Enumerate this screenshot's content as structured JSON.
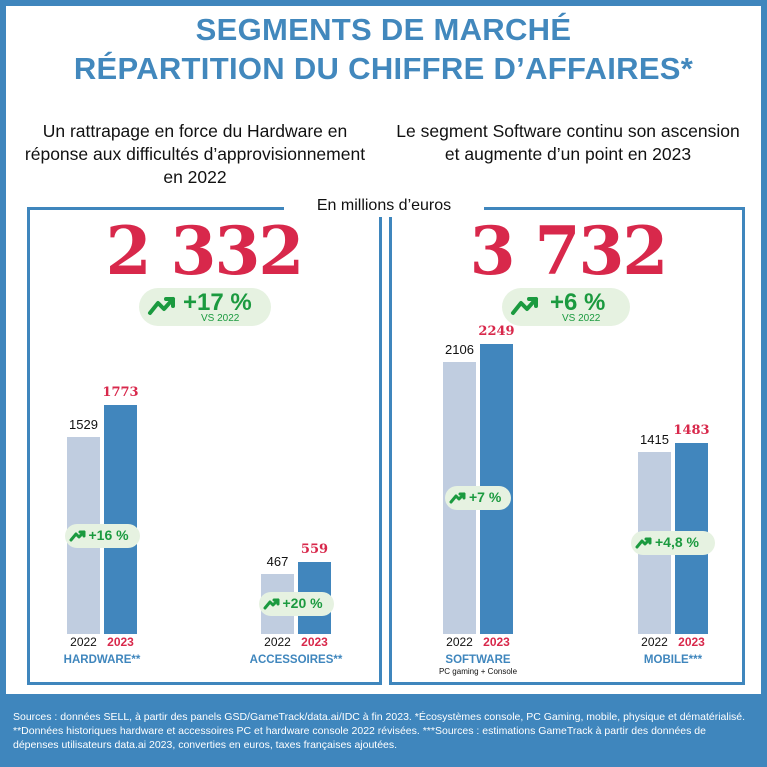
{
  "title": {
    "line1": "SEGMENTS DE MARCHÉ",
    "line2": "RÉPARTITION DU CHIFFRE D’AFFAIRES*"
  },
  "subtitles": {
    "left": "Un rattrapage en force du Hardware en réponse aux difficultés d’approvisionnement en 2022",
    "right": "Le segment Software continu son ascension et augmente d’un point en 2023"
  },
  "unit_label": "En millions d’euros",
  "footer": "Sources : données SELL, à partir des panels GSD/GameTrack/data.ai/IDC à fin 2023. *Écosystèmes console, PC Gaming, mobile, physique et dématérialisé. **Données historiques hardware et accessoires PC et hardware console 2022 révisées.  ***Sources : estimations GameTrack à partir des données de dépenses utilisateurs data.ai 2023, converties en euros, taxes françaises ajoutées.",
  "colors": {
    "accent_blue": "#3f86bd",
    "bar_2022": "#c0cde0",
    "bar_2023": "#4186bd",
    "highlight_red": "#d8284b",
    "growth_green": "#1b9a3f",
    "pill_bg": "#e6f2e1"
  },
  "icons": {
    "growth": "trend-up-arrow-icon"
  },
  "chart_data": [
    {
      "type": "bar",
      "total": "2 332",
      "total_growth": "+17 %",
      "total_growth_note": "VS 2022",
      "series": [
        {
          "name": "2022",
          "values": [
            1529,
            467
          ]
        },
        {
          "name": "2023",
          "values": [
            1773,
            559
          ]
        }
      ],
      "value_labels": {
        "2022": [
          "1529",
          "467"
        ],
        "2023": [
          "1773",
          "559"
        ]
      },
      "categories": [
        "HARDWARE**",
        "ACCESSOIRES**"
      ],
      "category_sublabels": [
        "",
        ""
      ],
      "year_labels": [
        "2022",
        "2023"
      ],
      "growth": [
        "+16 %",
        "+20 %"
      ],
      "ylim": [
        0,
        2249
      ]
    },
    {
      "type": "bar",
      "total": "3 732",
      "total_growth": "+6 %",
      "total_growth_note": "VS 2022",
      "series": [
        {
          "name": "2022",
          "values": [
            2106,
            1415
          ]
        },
        {
          "name": "2023",
          "values": [
            2249,
            1483
          ]
        }
      ],
      "value_labels": {
        "2022": [
          "2106",
          "1415"
        ],
        "2023": [
          "2249",
          "1483"
        ]
      },
      "categories": [
        "SOFTWARE",
        "MOBILE***"
      ],
      "category_sublabels": [
        "PC gaming + Console",
        ""
      ],
      "year_labels": [
        "2022",
        "2023"
      ],
      "growth": [
        "+7 %",
        "+4,8 %"
      ],
      "ylim": [
        0,
        2249
      ]
    }
  ]
}
